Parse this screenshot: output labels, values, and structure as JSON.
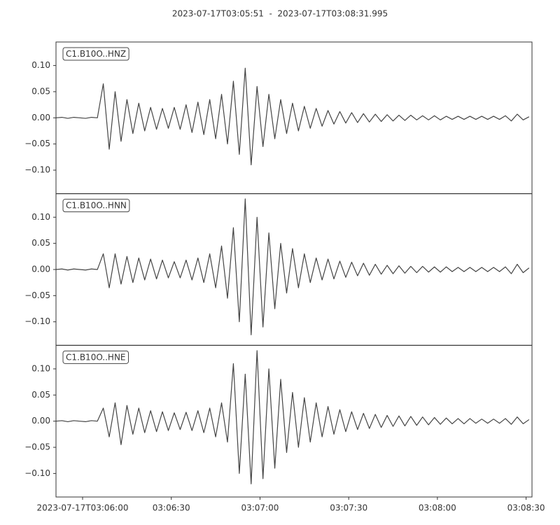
{
  "title": "2023-07-17T03:05:51  -  2023-07-17T03:08:31.995",
  "chart_data": [
    {
      "type": "line",
      "label": "C1.B10O..HNZ",
      "color": "#444444",
      "x": [
        351,
        353,
        355,
        357,
        359,
        361,
        363,
        365,
        367,
        369,
        371,
        373,
        375,
        377,
        379,
        381,
        383,
        385,
        387,
        389,
        391,
        393,
        395,
        397,
        399,
        401,
        403,
        405,
        407,
        409,
        411,
        413,
        415,
        417,
        419,
        421,
        423,
        425,
        427,
        429,
        431,
        433,
        435,
        437,
        439,
        441,
        443,
        445,
        447,
        449,
        451,
        453,
        455,
        457,
        459,
        461,
        463,
        465,
        467,
        469,
        471,
        473,
        475,
        477,
        479,
        481,
        483,
        485,
        487,
        489,
        491,
        493,
        495,
        497,
        499,
        501,
        503,
        505,
        507,
        509,
        511
      ],
      "values": [
        0,
        0.001,
        -0.001,
        0.001,
        0,
        -0.001,
        0.001,
        0,
        0.065,
        -0.06,
        0.05,
        -0.045,
        0.035,
        -0.03,
        0.028,
        -0.025,
        0.02,
        -0.022,
        0.018,
        -0.02,
        0.02,
        -0.022,
        0.025,
        -0.028,
        0.03,
        -0.032,
        0.035,
        -0.04,
        0.045,
        -0.05,
        0.07,
        -0.07,
        0.095,
        -0.09,
        0.06,
        -0.055,
        0.045,
        -0.04,
        0.035,
        -0.03,
        0.028,
        -0.025,
        0.022,
        -0.02,
        0.018,
        -0.016,
        0.014,
        -0.012,
        0.012,
        -0.01,
        0.01,
        -0.009,
        0.008,
        -0.008,
        0.007,
        -0.007,
        0.006,
        -0.006,
        0.005,
        -0.005,
        0.005,
        -0.004,
        0.004,
        -0.004,
        0.004,
        -0.004,
        0.003,
        -0.003,
        0.003,
        -0.003,
        0.003,
        -0.003,
        0.003,
        -0.003,
        0.003,
        -0.003,
        0.004,
        -0.006,
        0.007,
        -0.004,
        0.002
      ],
      "xlim": [
        351,
        511.995
      ],
      "ylim": [
        -0.145,
        0.145
      ],
      "yticks": [
        {
          "value": -0.1,
          "label": "−0.10"
        },
        {
          "value": -0.05,
          "label": "−0.05"
        },
        {
          "value": 0,
          "label": "0.00"
        },
        {
          "value": 0.05,
          "label": "0.05"
        },
        {
          "value": 0.1,
          "label": "0.10"
        }
      ]
    },
    {
      "type": "line",
      "label": "C1.B10O..HNN",
      "color": "#444444",
      "x": [
        351,
        353,
        355,
        357,
        359,
        361,
        363,
        365,
        367,
        369,
        371,
        373,
        375,
        377,
        379,
        381,
        383,
        385,
        387,
        389,
        391,
        393,
        395,
        397,
        399,
        401,
        403,
        405,
        407,
        409,
        411,
        413,
        415,
        417,
        419,
        421,
        423,
        425,
        427,
        429,
        431,
        433,
        435,
        437,
        439,
        441,
        443,
        445,
        447,
        449,
        451,
        453,
        455,
        457,
        459,
        461,
        463,
        465,
        467,
        469,
        471,
        473,
        475,
        477,
        479,
        481,
        483,
        485,
        487,
        489,
        491,
        493,
        495,
        497,
        499,
        501,
        503,
        505,
        507,
        509,
        511
      ],
      "values": [
        0,
        0.001,
        -0.001,
        0.001,
        0,
        -0.001,
        0.001,
        0,
        0.03,
        -0.035,
        0.03,
        -0.028,
        0.025,
        -0.025,
        0.022,
        -0.02,
        0.02,
        -0.018,
        0.018,
        -0.016,
        0.015,
        -0.016,
        0.018,
        -0.02,
        0.022,
        -0.025,
        0.03,
        -0.035,
        0.045,
        -0.055,
        0.08,
        -0.1,
        0.135,
        -0.125,
        0.1,
        -0.11,
        0.07,
        -0.075,
        0.05,
        -0.045,
        0.04,
        -0.035,
        0.03,
        -0.025,
        0.022,
        -0.02,
        0.02,
        -0.018,
        0.016,
        -0.015,
        0.014,
        -0.012,
        0.012,
        -0.011,
        0.01,
        -0.009,
        0.008,
        -0.008,
        0.007,
        -0.007,
        0.006,
        -0.006,
        0.006,
        -0.005,
        0.005,
        -0.005,
        0.005,
        -0.004,
        0.004,
        -0.004,
        0.004,
        -0.004,
        0.004,
        -0.004,
        0.004,
        -0.004,
        0.005,
        -0.008,
        0.01,
        -0.006,
        0.003
      ],
      "xlim": [
        351,
        511.995
      ],
      "ylim": [
        -0.145,
        0.145
      ],
      "yticks": [
        {
          "value": -0.1,
          "label": "−0.10"
        },
        {
          "value": -0.05,
          "label": "−0.05"
        },
        {
          "value": 0,
          "label": "0.00"
        },
        {
          "value": 0.05,
          "label": "0.05"
        },
        {
          "value": 0.1,
          "label": "0.10"
        }
      ]
    },
    {
      "type": "line",
      "label": "C1.B10O..HNE",
      "color": "#444444",
      "x": [
        351,
        353,
        355,
        357,
        359,
        361,
        363,
        365,
        367,
        369,
        371,
        373,
        375,
        377,
        379,
        381,
        383,
        385,
        387,
        389,
        391,
        393,
        395,
        397,
        399,
        401,
        403,
        405,
        407,
        409,
        411,
        413,
        415,
        417,
        419,
        421,
        423,
        425,
        427,
        429,
        431,
        433,
        435,
        437,
        439,
        441,
        443,
        445,
        447,
        449,
        451,
        453,
        455,
        457,
        459,
        461,
        463,
        465,
        467,
        469,
        471,
        473,
        475,
        477,
        479,
        481,
        483,
        485,
        487,
        489,
        491,
        493,
        495,
        497,
        499,
        501,
        503,
        505,
        507,
        509,
        511
      ],
      "values": [
        0,
        0.001,
        -0.001,
        0.001,
        0,
        -0.001,
        0.001,
        0,
        0.025,
        -0.03,
        0.035,
        -0.045,
        0.03,
        -0.025,
        0.025,
        -0.022,
        0.02,
        -0.02,
        0.018,
        -0.018,
        0.016,
        -0.016,
        0.017,
        -0.018,
        0.02,
        -0.022,
        0.025,
        -0.03,
        0.035,
        -0.04,
        0.11,
        -0.1,
        0.09,
        -0.12,
        0.135,
        -0.11,
        0.1,
        -0.09,
        0.08,
        -0.06,
        0.055,
        -0.05,
        0.045,
        -0.04,
        0.035,
        -0.03,
        0.028,
        -0.025,
        0.022,
        -0.02,
        0.018,
        -0.016,
        0.015,
        -0.014,
        0.013,
        -0.012,
        0.011,
        -0.01,
        0.01,
        -0.009,
        0.009,
        -0.008,
        0.008,
        -0.007,
        0.007,
        -0.006,
        0.006,
        -0.005,
        0.005,
        -0.005,
        0.005,
        -0.004,
        0.004,
        -0.004,
        0.004,
        -0.004,
        0.005,
        -0.006,
        0.008,
        -0.005,
        0.003
      ],
      "xlim": [
        351,
        511.995
      ],
      "ylim": [
        -0.145,
        0.145
      ],
      "yticks": [
        {
          "value": -0.1,
          "label": "−0.10"
        },
        {
          "value": -0.05,
          "label": "−0.05"
        },
        {
          "value": 0,
          "label": "0.00"
        },
        {
          "value": 0.05,
          "label": "0.05"
        },
        {
          "value": 0.1,
          "label": "0.10"
        }
      ],
      "xticks": [
        {
          "value": 360,
          "label": "2023-07-17T03:06:00"
        },
        {
          "value": 390,
          "label": "03:06:30"
        },
        {
          "value": 420,
          "label": "03:07:00"
        },
        {
          "value": 450,
          "label": "03:07:30"
        },
        {
          "value": 480,
          "label": "03:08:00"
        },
        {
          "value": 510,
          "label": "03:08:30"
        }
      ]
    }
  ]
}
